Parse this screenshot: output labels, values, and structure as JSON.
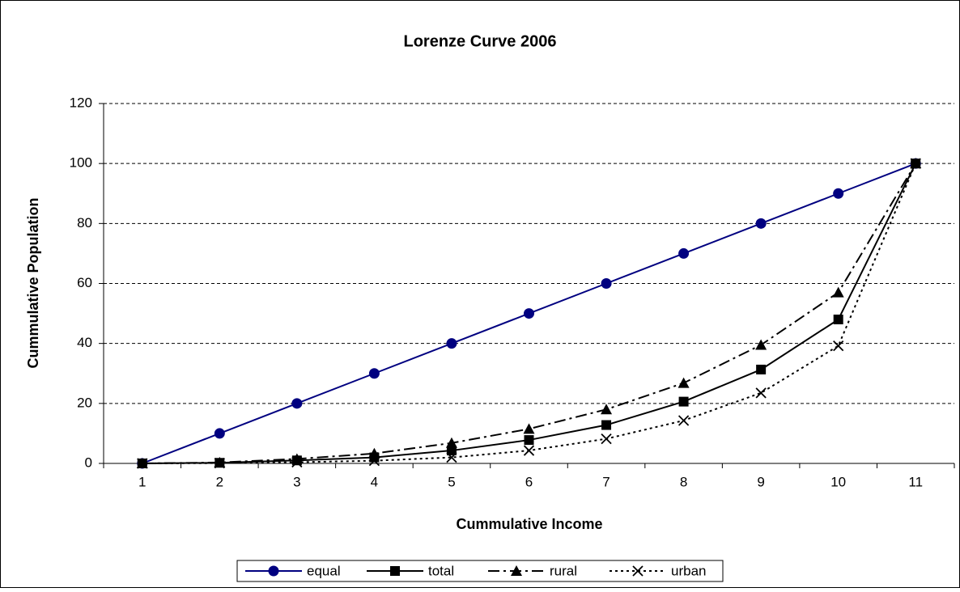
{
  "chart_data": {
    "type": "line",
    "title": "Lorenze Curve 2006",
    "x_label": "Cummulative Income",
    "y_label": "Cummulative Population",
    "categories": [
      "1",
      "2",
      "3",
      "4",
      "5",
      "6",
      "7",
      "8",
      "9",
      "10",
      "11"
    ],
    "ylim": [
      0,
      120
    ],
    "yticks": [
      0,
      20,
      40,
      60,
      80,
      100,
      120
    ],
    "grid": true,
    "legend": "bottom",
    "series": [
      {
        "name": "equal",
        "color": "#000080",
        "line": "solid",
        "marker": "circle",
        "values": [
          0,
          10,
          20,
          30,
          40,
          50,
          60,
          70,
          80,
          90,
          100
        ]
      },
      {
        "name": "total",
        "color": "#000000",
        "line": "solid",
        "marker": "square",
        "values": [
          0,
          0.2,
          1,
          2,
          4.3,
          7.8,
          12.8,
          20.6,
          31.3,
          48,
          100
        ]
      },
      {
        "name": "rural",
        "color": "#000000",
        "line": "dashdot",
        "marker": "triangle",
        "values": [
          0,
          0.3,
          1.5,
          3.3,
          6.8,
          11.5,
          18,
          26.8,
          39.5,
          57,
          100
        ]
      },
      {
        "name": "urban",
        "color": "#000000",
        "line": "dotted",
        "marker": "x",
        "values": [
          0,
          0.1,
          0.4,
          0.9,
          2,
          4.3,
          8.2,
          14.3,
          23.5,
          39.2,
          100
        ]
      }
    ]
  }
}
